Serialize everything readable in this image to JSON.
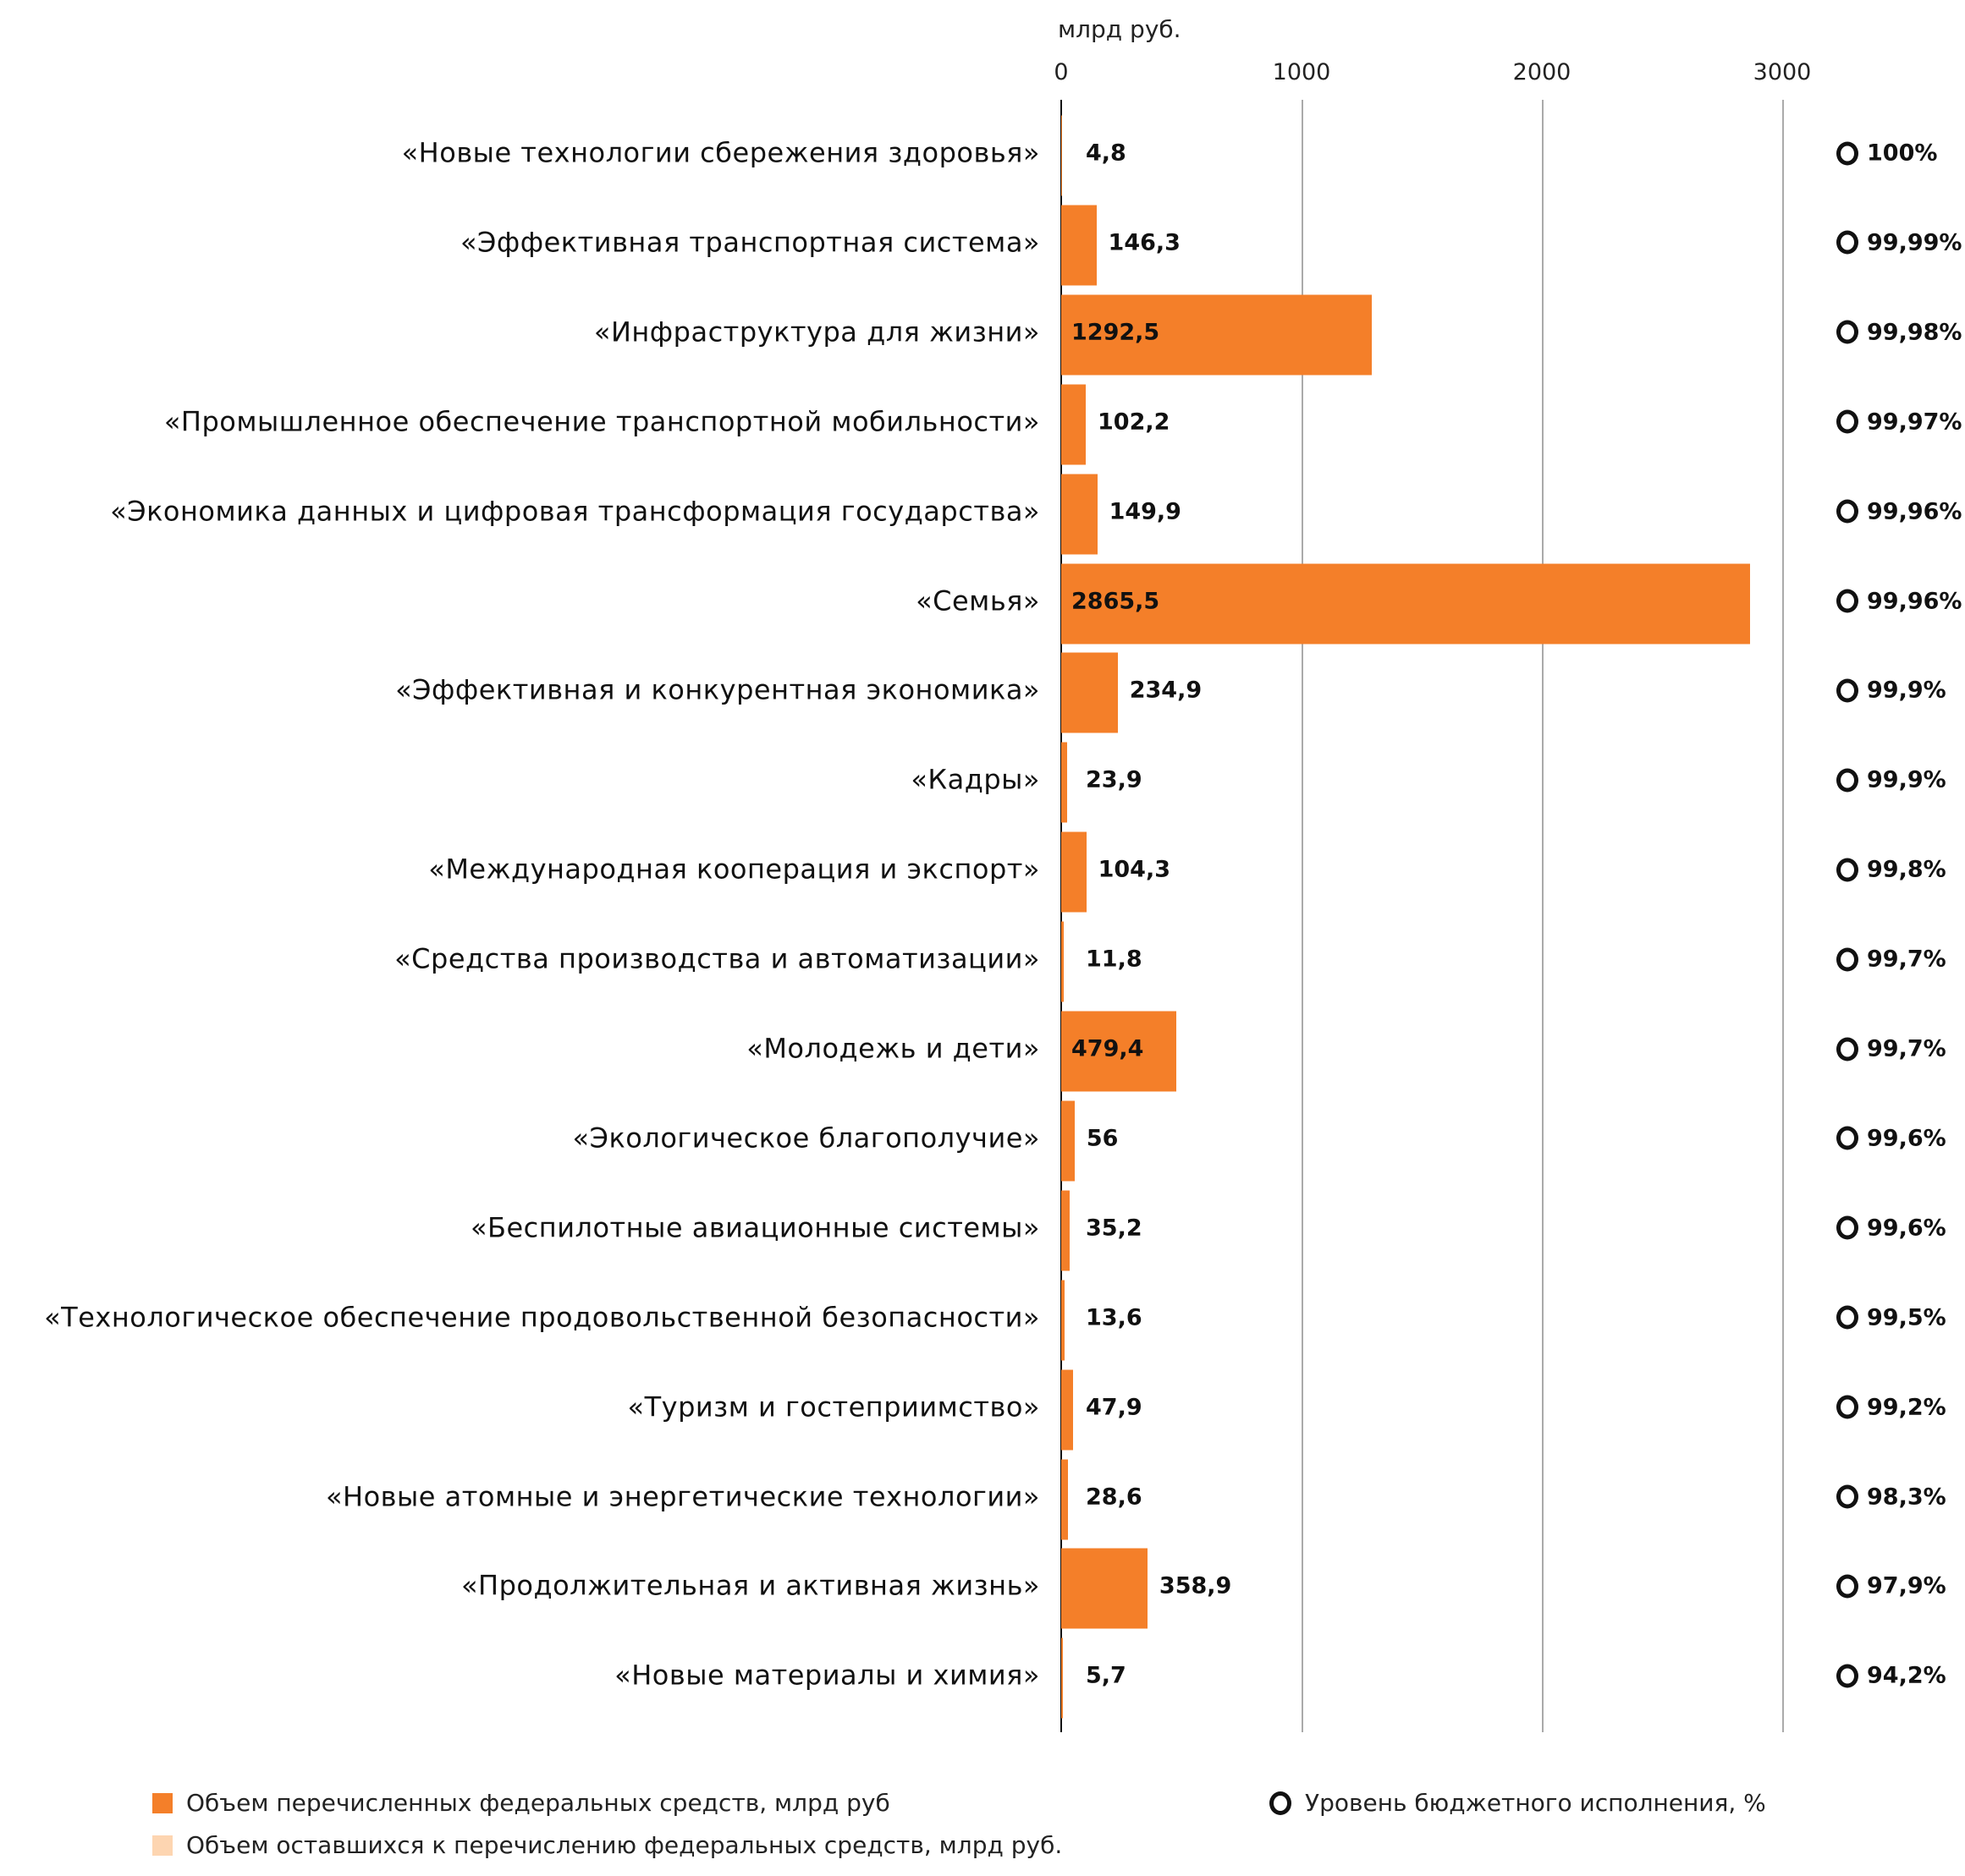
{
  "chart_data": {
    "type": "bar",
    "orientation": "horizontal",
    "unit_label": "млрд руб.",
    "xlim": [
      0,
      3000
    ],
    "x_ticks": [
      "0",
      "1000",
      "2000",
      "3000"
    ],
    "grid": true,
    "categories": [
      "«Новые технологии сбережения здоровья»",
      "«Эффективная транспортная система»",
      "«Инфраструктура для жизни»",
      "«Промышленное обеспечение транспортной мобильности»",
      "«Экономика данных и цифровая трансформация государства»",
      "«Семья»",
      "«Эффективная и конкурентная экономика»",
      "«Кадры»",
      "«Международная кооперация и экспорт»",
      "«Средства производства и автоматизации»",
      "«Молодежь и дети»",
      "«Экологическое благополучие»",
      "«Беспилотные авиационные системы»",
      "«Технологическое обеспечение продовольственной безопасности»",
      "«Туризм и гостеприимство»",
      "«Новые атомные и энергетические технологии»",
      "«Продолжительная и активная жизнь»",
      "«Новые материалы и химия»"
    ],
    "values": [
      4.8,
      146.3,
      1292.5,
      102.2,
      149.9,
      2865.5,
      234.9,
      23.9,
      104.3,
      11.8,
      479.4,
      56,
      35.2,
      13.6,
      47.9,
      28.6,
      358.9,
      5.7
    ],
    "value_labels": [
      "4,8",
      "146,3",
      "1292,5",
      "102,2",
      "149,9",
      "2865,5",
      "234,9",
      "23,9",
      "104,3",
      "11,8",
      "479,4",
      "56",
      "35,2",
      "13,6",
      "47,9",
      "28,6",
      "358,9",
      "5,7"
    ],
    "execution_labels": [
      "100%",
      "99,99%",
      "99,98%",
      "99,97%",
      "99,96%",
      "99,96%",
      "99,9%",
      "99,9%",
      "99,8%",
      "99,7%",
      "99,7%",
      "99,6%",
      "99,6%",
      "99,5%",
      "99,2%",
      "98,3%",
      "97,9%",
      "94,2%"
    ],
    "legend": [
      {
        "label": "Объем перечисленных федеральных средств, млрд руб",
        "color": "#f47f29"
      },
      {
        "label": "Объем оставшихся к перечислению федеральных средств, млрд руб.",
        "color": "#fdd5b1"
      },
      {
        "label": "Уровень бюджетного исполнения, %",
        "marker": "ring"
      }
    ],
    "legend_placement": "bottom"
  }
}
